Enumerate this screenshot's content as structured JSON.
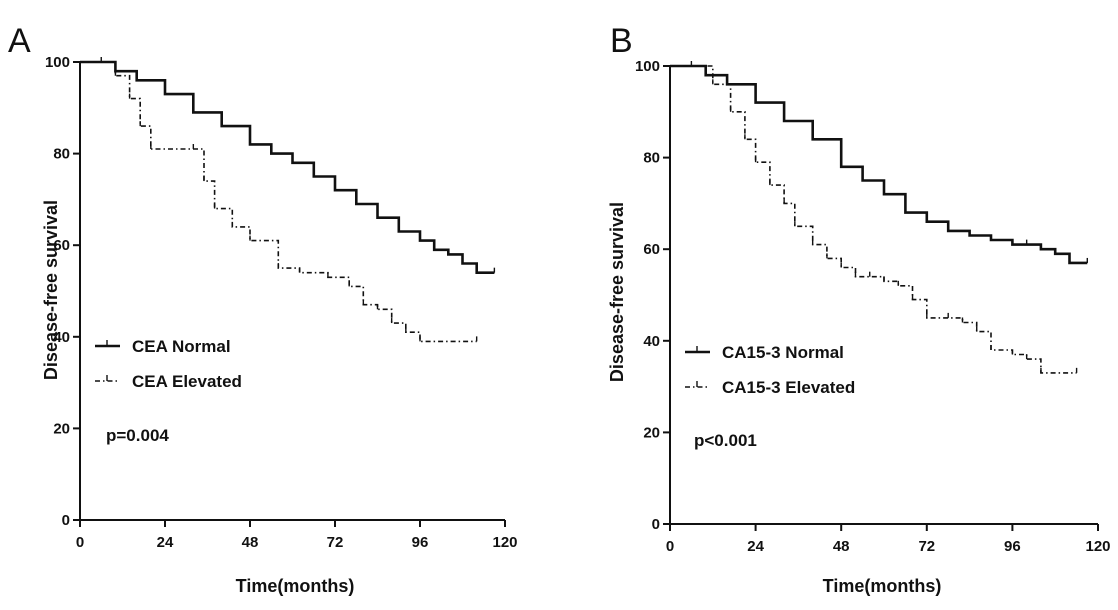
{
  "chart_data": [
    {
      "type": "line",
      "panel_label": "A",
      "xlabel": "Time(months)",
      "ylabel": "Disease-free survival",
      "xlim": [
        0,
        120
      ],
      "ylim": [
        0,
        100
      ],
      "xticks": [
        "0",
        "24",
        "48",
        "72",
        "96",
        "120"
      ],
      "yticks": [
        "0",
        "20",
        "40",
        "60",
        "80",
        "100"
      ],
      "legend_position": "lower-left",
      "annotation": "p=0.004",
      "series": [
        {
          "name": "CEA Normal",
          "style": "solid",
          "x": [
            0,
            6,
            10,
            16,
            24,
            32,
            40,
            48,
            54,
            60,
            66,
            72,
            78,
            84,
            90,
            96,
            100,
            104,
            108,
            112,
            117
          ],
          "y": [
            100,
            100,
            98,
            96,
            93,
            89,
            86,
            82,
            80,
            78,
            75,
            72,
            69,
            66,
            63,
            61,
            59,
            58,
            56,
            54,
            54
          ]
        },
        {
          "name": "CEA Elevated",
          "style": "dash-dot",
          "x": [
            0,
            10,
            14,
            17,
            20,
            32,
            35,
            38,
            43,
            48,
            56,
            62,
            70,
            76,
            80,
            84,
            88,
            92,
            96,
            112
          ],
          "y": [
            100,
            97,
            92,
            86,
            81,
            81,
            74,
            68,
            64,
            61,
            55,
            54,
            53,
            51,
            47,
            46,
            43,
            41,
            39,
            39
          ]
        }
      ]
    },
    {
      "type": "line",
      "panel_label": "B",
      "xlabel": "Time(months)",
      "ylabel": "Disease-free survival",
      "xlim": [
        0,
        120
      ],
      "ylim": [
        0,
        100
      ],
      "xticks": [
        "0",
        "24",
        "48",
        "72",
        "96",
        "120"
      ],
      "yticks": [
        "0",
        "20",
        "40",
        "60",
        "80",
        "100"
      ],
      "legend_position": "lower-left",
      "annotation": "p<0.001",
      "series": [
        {
          "name": "CA15-3 Normal",
          "style": "solid",
          "x": [
            0,
            6,
            10,
            16,
            24,
            32,
            40,
            48,
            54,
            60,
            66,
            72,
            78,
            84,
            90,
            96,
            100,
            104,
            108,
            112,
            117
          ],
          "y": [
            100,
            100,
            98,
            96,
            92,
            88,
            84,
            78,
            75,
            72,
            68,
            66,
            64,
            63,
            62,
            61,
            61,
            60,
            59,
            57,
            57
          ]
        },
        {
          "name": "CA15-3 Elevated",
          "style": "dash-dot",
          "x": [
            0,
            12,
            17,
            21,
            24,
            28,
            32,
            35,
            40,
            44,
            48,
            52,
            56,
            60,
            64,
            68,
            72,
            78,
            82,
            86,
            90,
            96,
            100,
            104,
            114
          ],
          "y": [
            100,
            96,
            90,
            84,
            79,
            74,
            70,
            65,
            61,
            58,
            56,
            54,
            54,
            53,
            52,
            49,
            45,
            45,
            44,
            42,
            38,
            37,
            36,
            33,
            33
          ]
        }
      ]
    }
  ]
}
